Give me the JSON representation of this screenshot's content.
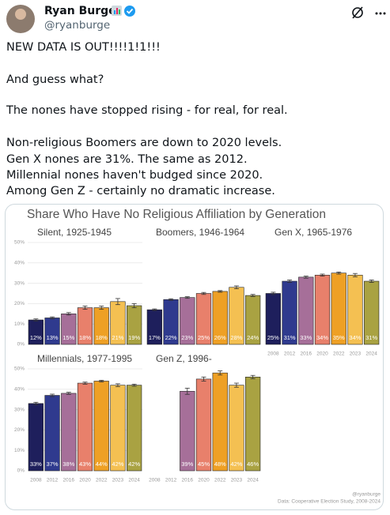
{
  "author": {
    "name": "Ryan Burge",
    "handle": "@ryanburge"
  },
  "tweet": {
    "lines": [
      "NEW DATA IS OUT!!!!1!1!!!",
      "And guess what?",
      "The nones have stopped rising - for real, for real.",
      "Non-religious Boomers are down to 2020 levels.",
      "Gen X nones are 31%. The same as 2012.",
      "Millennial nones haven't budged since 2020.",
      "Among Gen Z - certainly no dramatic increase."
    ]
  },
  "figure": {
    "title": "Share Who Have No Religious Affiliation by Generation",
    "credit": "@ryanburge",
    "source": "Data: Cooperative Election Study, 2008-2024"
  },
  "chart_data": [
    {
      "type": "bar",
      "title": "Silent, 1925-1945",
      "categories": [
        null,
        null,
        null,
        null,
        null,
        null,
        null
      ],
      "values": [
        12,
        13,
        15,
        18,
        18,
        21,
        19
      ],
      "value_labels": [
        "12%",
        "13%",
        "15%",
        "18%",
        "18%",
        "21%",
        "19%"
      ],
      "errors": [
        0.5,
        0.5,
        0.6,
        0.8,
        0.8,
        1.5,
        1
      ],
      "colors": [
        "#1e1f5c",
        "#2f3a8e",
        "#a66f99",
        "#e8806b",
        "#eea025",
        "#f4c052",
        "#a9a242"
      ],
      "ylim": [
        0,
        50
      ],
      "yticks": [
        {
          "value": 0,
          "label": "0%"
        },
        {
          "value": 10,
          "label": "10%"
        },
        {
          "value": 20,
          "label": "20%"
        },
        {
          "value": 30,
          "label": "30%"
        },
        {
          "value": 40,
          "label": "40%"
        },
        {
          "value": 50,
          "label": "50%"
        }
      ],
      "grid": true
    },
    {
      "type": "bar",
      "title": "Boomers, 1946-1964",
      "categories": [
        null,
        null,
        null,
        null,
        null,
        null,
        null
      ],
      "values": [
        17,
        22,
        23,
        25,
        26,
        28,
        24
      ],
      "value_labels": [
        "17%",
        "22%",
        "23%",
        "25%",
        "26%",
        "28%",
        "24%"
      ],
      "errors": [
        0.4,
        0.4,
        0.4,
        0.5,
        0.4,
        0.7,
        0.5
      ],
      "colors": [
        "#1e1f5c",
        "#2f3a8e",
        "#a66f99",
        "#e8806b",
        "#eea025",
        "#f4c052",
        "#a9a242"
      ],
      "ylim": [
        0,
        50
      ]
    },
    {
      "type": "bar",
      "title": "Gen X, 1965-1976",
      "categories": [
        "2008",
        "2012",
        "2016",
        "2020",
        "2022",
        "2023",
        "2024"
      ],
      "values": [
        25,
        31,
        33,
        34,
        35,
        34,
        31
      ],
      "value_labels": [
        "25%",
        "31%",
        "33%",
        "34%",
        "35%",
        "34%",
        "31%"
      ],
      "errors": [
        0.6,
        0.6,
        0.5,
        0.5,
        0.5,
        0.8,
        0.6
      ],
      "colors": [
        "#1e1f5c",
        "#2f3a8e",
        "#a66f99",
        "#e8806b",
        "#eea025",
        "#f4c052",
        "#a9a242"
      ],
      "ylim": [
        0,
        50
      ]
    },
    {
      "type": "bar",
      "title": "Millennials, 1977-1995",
      "categories": [
        "2008",
        "2012",
        "2016",
        "2020",
        "2022",
        "2023",
        "2024"
      ],
      "values": [
        33,
        37,
        38,
        43,
        44,
        42,
        42
      ],
      "value_labels": [
        "33%",
        "37%",
        "38%",
        "43%",
        "44%",
        "42%",
        "42%"
      ],
      "errors": [
        0.6,
        0.6,
        0.5,
        0.5,
        0.4,
        0.7,
        0.5
      ],
      "colors": [
        "#1e1f5c",
        "#2f3a8e",
        "#a66f99",
        "#e8806b",
        "#eea025",
        "#f4c052",
        "#a9a242"
      ],
      "ylim": [
        0,
        50
      ],
      "yticks": [
        {
          "value": 0,
          "label": "0%"
        },
        {
          "value": 10,
          "label": "10%"
        },
        {
          "value": 20,
          "label": "20%"
        },
        {
          "value": 30,
          "label": "30%"
        },
        {
          "value": 40,
          "label": "40%"
        },
        {
          "value": 50,
          "label": "50%"
        }
      ],
      "grid": true
    },
    {
      "type": "bar",
      "title": "Gen Z, 1996-",
      "categories": [
        "2008",
        "2012",
        "2016",
        "2020",
        "2022",
        "2023",
        "2024"
      ],
      "values": [
        null,
        null,
        39,
        45,
        48,
        42,
        46
      ],
      "value_labels": [
        null,
        null,
        "39%",
        "45%",
        "48%",
        "42%",
        "46%"
      ],
      "errors": [
        null,
        null,
        1.5,
        1,
        1,
        1,
        0.8
      ],
      "colors": [
        "#1e1f5c",
        "#2f3a8e",
        "#a66f99",
        "#e8806b",
        "#eea025",
        "#f4c052",
        "#a9a242"
      ],
      "ylim": [
        0,
        50
      ]
    }
  ]
}
